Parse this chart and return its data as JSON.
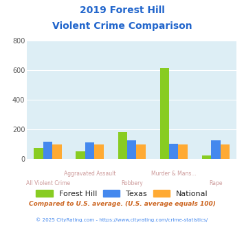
{
  "title_line1": "2019 Forest Hill",
  "title_line2": "Violent Crime Comparison",
  "forest_hill": [
    75,
    50,
    180,
    615,
    22
  ],
  "texas": [
    118,
    113,
    128,
    103,
    128
  ],
  "national": [
    100,
    100,
    100,
    100,
    100
  ],
  "forest_hill_color": "#88cc22",
  "texas_color": "#4488ee",
  "national_color": "#ffaa33",
  "bg_color": "#ddeef5",
  "ylim": [
    0,
    800
  ],
  "yticks": [
    0,
    200,
    400,
    600,
    800
  ],
  "title_color": "#2266cc",
  "top_labels": [
    "",
    "Aggravated Assault",
    "",
    "Murder & Mans...",
    ""
  ],
  "bottom_labels": [
    "All Violent Crime",
    "",
    "Robbery",
    "",
    "Rape"
  ],
  "xlabel_color": "#cc9999",
  "legend_text_color": "#222222",
  "subtitle_note": "Compared to U.S. average. (U.S. average equals 100)",
  "subtitle_color": "#cc6622",
  "footer": "© 2025 CityRating.com - https://www.cityrating.com/crime-statistics/",
  "footer_color": "#4488ee"
}
